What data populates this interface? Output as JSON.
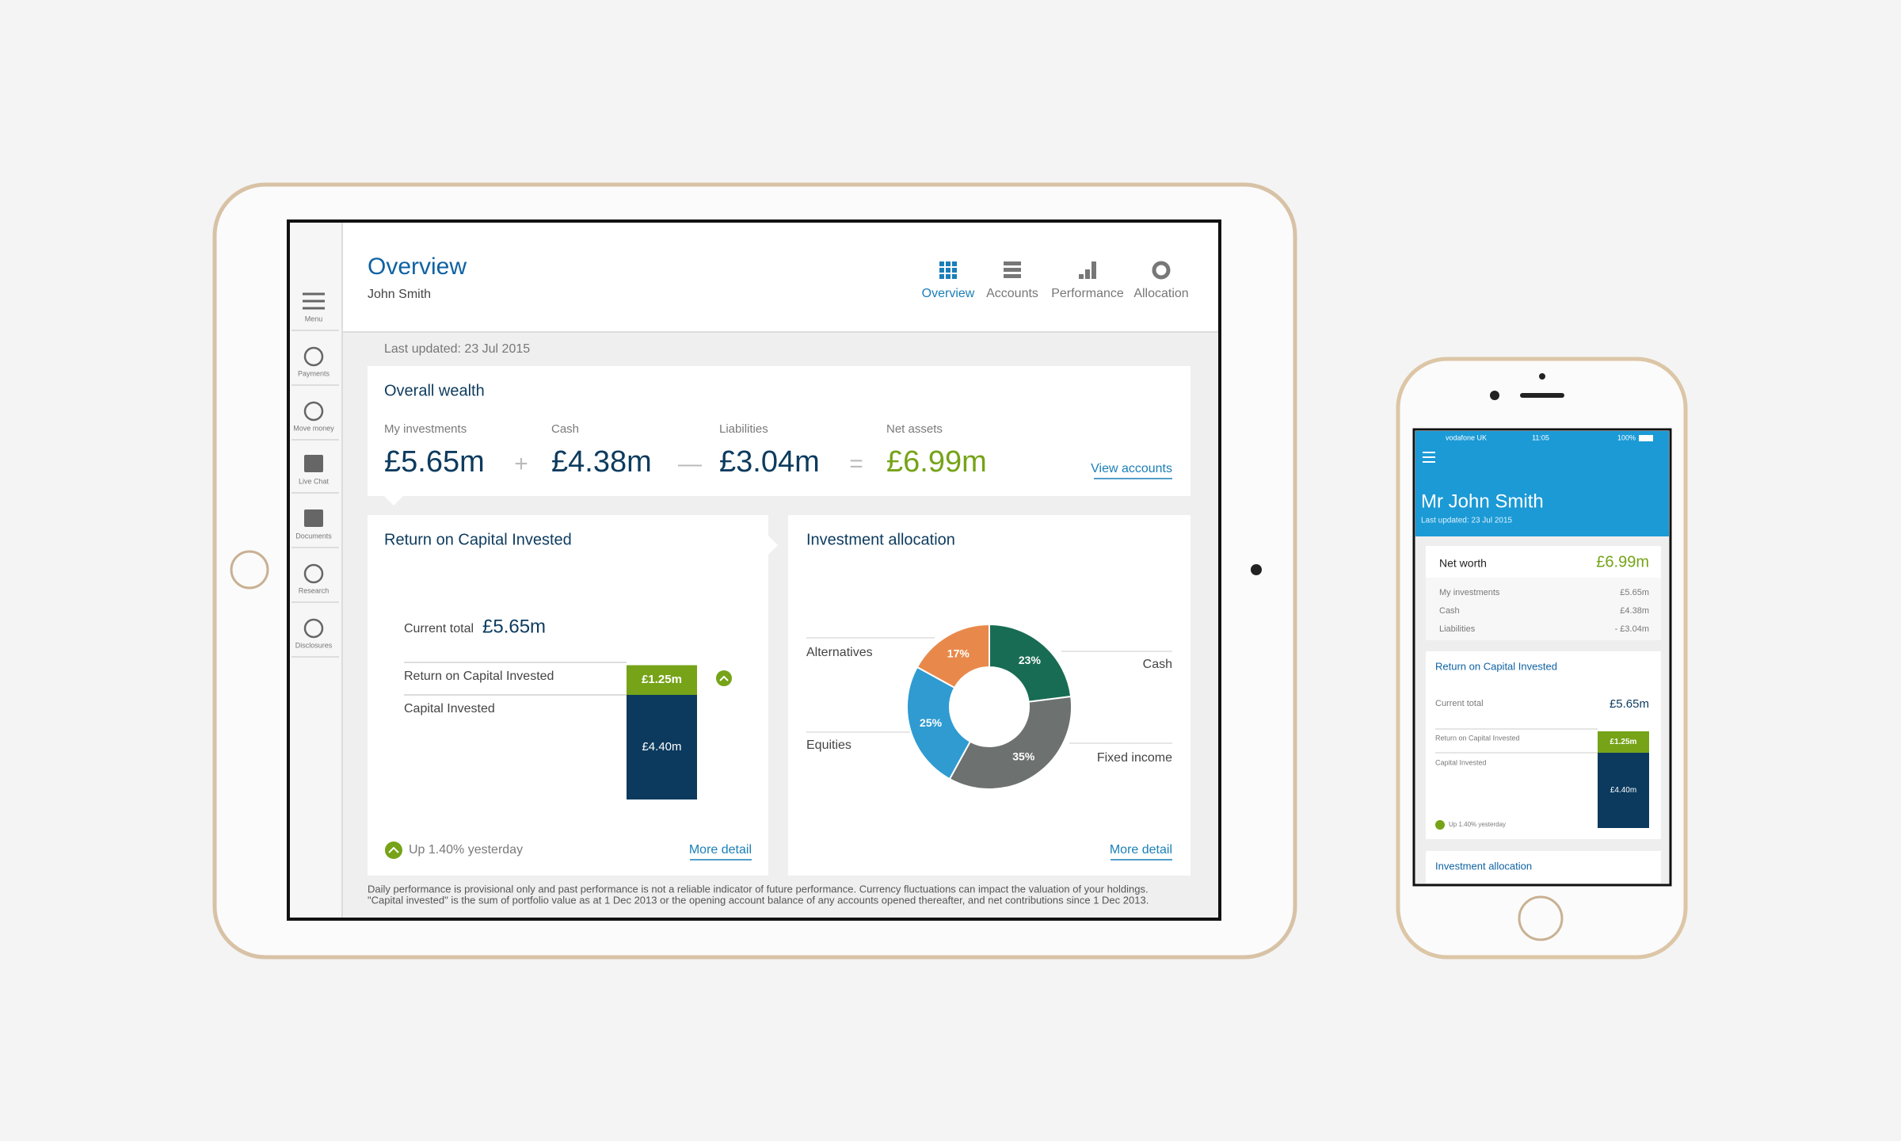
{
  "tablet": {
    "sidebar": [
      "Menu",
      "Payments",
      "Move money",
      "Live Chat",
      "Documents",
      "Research",
      "Disclosures"
    ],
    "header": {
      "title": "Overview",
      "user": "John Smith",
      "tabs": [
        "Overview",
        "Accounts",
        "Performance",
        "Allocation"
      ]
    },
    "last_updated": "Last updated: 23 Jul 2015",
    "wealth": {
      "title": "Overall wealth",
      "items": [
        {
          "label": "My investments",
          "value": "£5.65m"
        },
        {
          "label": "Cash",
          "value": "£4.38m"
        },
        {
          "label": "Liabilities",
          "value": "£3.04m"
        },
        {
          "label": "Net assets",
          "value": "£6.99m"
        }
      ],
      "operators": [
        "+",
        "—",
        "="
      ],
      "link": "View accounts"
    },
    "roc": {
      "title": "Return on Capital Invested",
      "current_label": "Current total",
      "current_value": "£5.65m",
      "categories": [
        "Capital Invested",
        "Return on Capital Invested"
      ],
      "values": [
        4.4,
        1.25
      ],
      "value_labels": [
        "£4.40m",
        "£1.25m"
      ],
      "colors": [
        "#0b3a5e",
        "#76a318"
      ],
      "change": "Up 1.40% yesterday",
      "link": "More detail"
    },
    "allocation": {
      "title": "Investment allocation",
      "categories": [
        "Cash",
        "Fixed income",
        "Equities",
        "Alternatives"
      ],
      "values": [
        23,
        35,
        25,
        17
      ],
      "value_labels": [
        "23%",
        "35%",
        "25%",
        "17%"
      ],
      "colors": [
        "#186c54",
        "#6d7170",
        "#2f9bd1",
        "#e8894b"
      ],
      "link": "More detail"
    },
    "disclaimer": [
      "Daily performance is provisional only and past performance is not a reliable indicator of future performance.  Currency fluctuations can impact the valuation of your holdings.",
      "\"Capital invested\" is the sum of portfolio value as at 1 Dec 2013 or the opening account balance of any accounts opened thereafter, and net contributions since 1 Dec 2013."
    ]
  },
  "phone": {
    "status": {
      "carrier": "vodafone UK",
      "time": "11:05",
      "battery": "100%"
    },
    "name": "Mr John Smith",
    "last_updated": "Last updated: 23 Jul 2015",
    "net_worth": {
      "label": "Net worth",
      "value": "£6.99m",
      "rows": [
        {
          "label": "My investments",
          "value": "£5.65m"
        },
        {
          "label": "Cash",
          "value": "£4.38m"
        },
        {
          "label": "Liabilities",
          "value": "- £3.04m"
        }
      ]
    },
    "roc": {
      "title": "Return on Capital Invested",
      "current_label": "Current total",
      "current_value": "£5.65m",
      "categories": [
        "Capital Invested",
        "Return on Capital Invested"
      ],
      "values": [
        4.4,
        1.25
      ],
      "value_labels": [
        "£4.40m",
        "£1.25m"
      ],
      "colors": [
        "#0b3a5e",
        "#76a318"
      ],
      "change": "Up 1.40% yesterday"
    },
    "allocation_title": "Investment allocation"
  }
}
